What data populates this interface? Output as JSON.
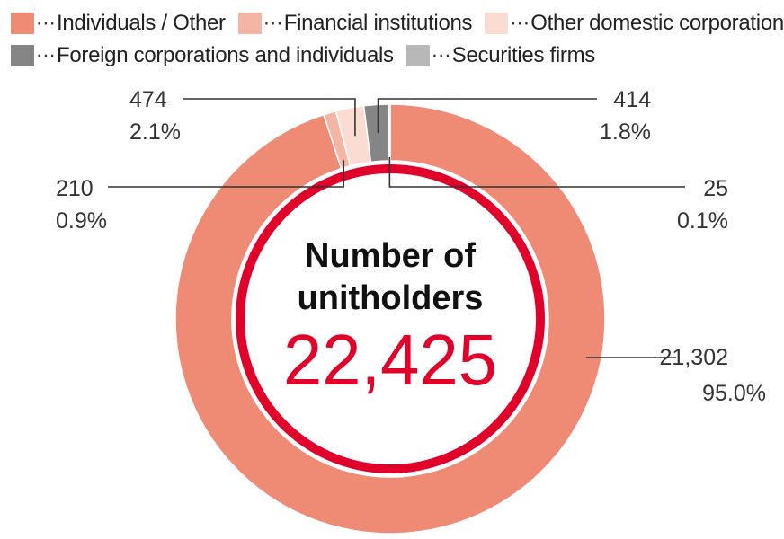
{
  "legend": [
    {
      "label": "Individuals / Other",
      "color": "#ef8a75"
    },
    {
      "label": "Financial institutions",
      "color": "#f5b5a4"
    },
    {
      "label": "Other domestic corporations",
      "color": "#fbdcd3"
    },
    {
      "label": "Foreign corporations and individuals",
      "color": "#858585"
    },
    {
      "label": "Securities firms",
      "color": "#b8b8b8"
    }
  ],
  "legend_dots": "⋯",
  "center": {
    "title_line1": "Number of",
    "title_line2": "unitholders",
    "total": "22,425",
    "ring_color": "#e0002a",
    "total_color": "#e0002a"
  },
  "chart_data": {
    "type": "pie",
    "style": "donut",
    "start": "top",
    "direction": "clockwise",
    "slices": [
      {
        "name": "Individuals / Other",
        "value": 21302,
        "percent": "95.0%",
        "value_label": "21,302",
        "color": "#ef8a75"
      },
      {
        "name": "Financial institutions",
        "value": 210,
        "percent": "0.9%",
        "value_label": "210",
        "color": "#f5b5a4"
      },
      {
        "name": "Other domestic corporations",
        "value": 474,
        "percent": "2.1%",
        "value_label": "474",
        "color": "#fbdcd3"
      },
      {
        "name": "Foreign corporations and individuals",
        "value": 414,
        "percent": "1.8%",
        "value_label": "414",
        "color": "#858585"
      },
      {
        "name": "Securities firms",
        "value": 25,
        "percent": "0.1%",
        "value_label": "25",
        "color": "#b8b8b8"
      }
    ],
    "legend_placement": "top-left"
  }
}
